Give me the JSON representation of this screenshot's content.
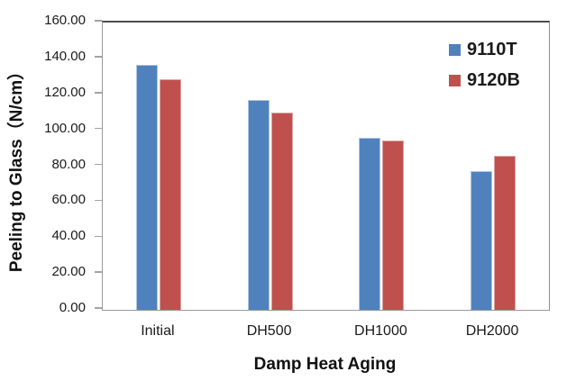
{
  "chart_data": {
    "type": "bar",
    "title": "",
    "xlabel": "Damp Heat Aging",
    "ylabel": "Peeling to Glass（N/cm）",
    "categories": [
      "Initial",
      "DH500",
      "DH1000",
      "DH2000"
    ],
    "series": [
      {
        "name": "9110T",
        "color": "#4f81bd",
        "border_color": "#aec4e0",
        "values": [
          136.5,
          117.0,
          96.0,
          77.5
        ]
      },
      {
        "name": "9120B",
        "color": "#c0504d",
        "border_color": "#dba4a2",
        "values": [
          128.5,
          110.0,
          94.5,
          86.0
        ]
      }
    ],
    "ylim": [
      0,
      160
    ],
    "ytick_step": 20,
    "ytick_labels": [
      "0.00",
      "20.00",
      "40.00",
      "60.00",
      "80.00",
      "100.00",
      "120.00",
      "140.00",
      "160.00"
    ],
    "grid": false,
    "legend_position": "top-right-inside",
    "axis_color": "#9a9a9a",
    "background": "#ffffff"
  }
}
